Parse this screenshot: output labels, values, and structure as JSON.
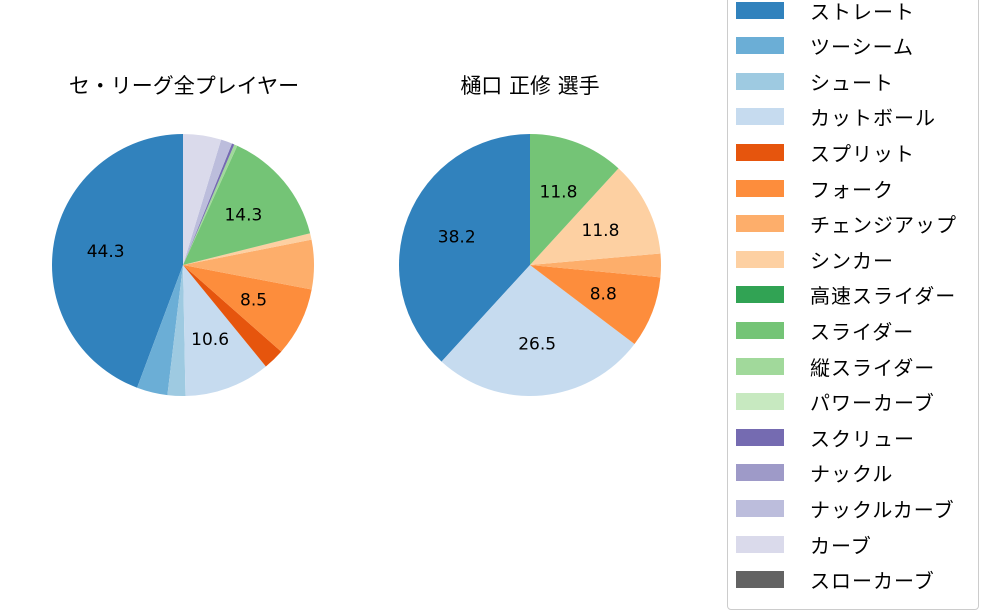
{
  "chart_data": [
    {
      "type": "pie",
      "title": "セ・リーグ全プレイヤー",
      "start_angle": 90,
      "direction": "counterclockwise",
      "slices": [
        {
          "label": "ストレート",
          "value": 44.3,
          "color": "#3182bd",
          "show_label": true
        },
        {
          "label": "ツーシーム",
          "value": 3.8,
          "color": "#6baed6",
          "show_label": false
        },
        {
          "label": "シュート",
          "value": 2.2,
          "color": "#9ecae1",
          "show_label": false
        },
        {
          "label": "カットボール",
          "value": 10.6,
          "color": "#c6dbef",
          "show_label": true
        },
        {
          "label": "スプリット",
          "value": 2.6,
          "color": "#e6550d",
          "show_label": false
        },
        {
          "label": "フォーク",
          "value": 8.5,
          "color": "#fd8d3c",
          "show_label": true
        },
        {
          "label": "チェンジアップ",
          "value": 6.1,
          "color": "#fdae6b",
          "show_label": false
        },
        {
          "label": "シンカー",
          "value": 0.8,
          "color": "#fdd0a2",
          "show_label": false
        },
        {
          "label": "スライダー",
          "value": 14.3,
          "color": "#74c476",
          "show_label": true
        },
        {
          "label": "縦スライダー",
          "value": 0.4,
          "color": "#a1d99b",
          "show_label": false
        },
        {
          "label": "スクリュー",
          "value": 0.3,
          "color": "#756bb1",
          "show_label": false
        },
        {
          "label": "ナックルカーブ",
          "value": 1.4,
          "color": "#bcbddc",
          "show_label": false
        },
        {
          "label": "カーブ",
          "value": 4.7,
          "color": "#dadaeb",
          "show_label": false
        }
      ]
    },
    {
      "type": "pie",
      "title": "樋口 正修  選手",
      "start_angle": 90,
      "direction": "counterclockwise",
      "slices": [
        {
          "label": "ストレート",
          "value": 38.2,
          "color": "#3182bd",
          "show_label": true
        },
        {
          "label": "カットボール",
          "value": 26.5,
          "color": "#c6dbef",
          "show_label": true
        },
        {
          "label": "フォーク",
          "value": 8.8,
          "color": "#fd8d3c",
          "show_label": true
        },
        {
          "label": "チェンジアップ",
          "value": 2.9,
          "color": "#fdae6b",
          "show_label": false
        },
        {
          "label": "シンカー",
          "value": 11.8,
          "color": "#fdd0a2",
          "show_label": true
        },
        {
          "label": "スライダー",
          "value": 11.8,
          "color": "#74c476",
          "show_label": true
        }
      ]
    }
  ],
  "legend": {
    "items": [
      {
        "label": "ストレート",
        "color": "#3182bd"
      },
      {
        "label": "ツーシーム",
        "color": "#6baed6"
      },
      {
        "label": "シュート",
        "color": "#9ecae1"
      },
      {
        "label": "カットボール",
        "color": "#c6dbef"
      },
      {
        "label": "スプリット",
        "color": "#e6550d"
      },
      {
        "label": "フォーク",
        "color": "#fd8d3c"
      },
      {
        "label": "チェンジアップ",
        "color": "#fdae6b"
      },
      {
        "label": "シンカー",
        "color": "#fdd0a2"
      },
      {
        "label": "高速スライダー",
        "color": "#31a354"
      },
      {
        "label": "スライダー",
        "color": "#74c476"
      },
      {
        "label": "縦スライダー",
        "color": "#a1d99b"
      },
      {
        "label": "パワーカーブ",
        "color": "#c7e9c0"
      },
      {
        "label": "スクリュー",
        "color": "#756bb1"
      },
      {
        "label": "ナックル",
        "color": "#9e9ac8"
      },
      {
        "label": "ナックルカーブ",
        "color": "#bcbddc"
      },
      {
        "label": "カーブ",
        "color": "#dadaeb"
      },
      {
        "label": "スローカーブ",
        "color": "#636363"
      }
    ]
  }
}
